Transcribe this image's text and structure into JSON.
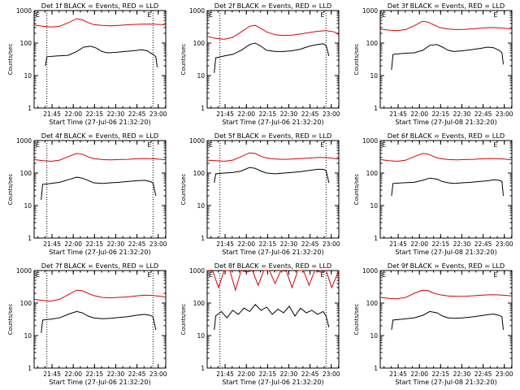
{
  "colors": {
    "events": "#000000",
    "lld": "#dd0000",
    "axis": "#000000",
    "background": "#ffffff"
  },
  "chart_data": [
    {
      "type": "line",
      "title": "Det 1f BLACK = Events, RED = LLD",
      "xlabel": "Start Time (27-Jul-06 21:32:20)",
      "ylabel": "Counts/sec",
      "x_ticks": [
        "21:45",
        "22:00",
        "22:15",
        "22:30",
        "22:45",
        "23:00"
      ],
      "y_ticks": [
        "1",
        "10",
        "100",
        "1000"
      ],
      "ylim": [
        1,
        1000
      ],
      "yscale": "log",
      "xlim_minutes": [
        0,
        93
      ],
      "marker_lines_minutes": [
        9,
        84
      ],
      "corner_labels": [
        "E",
        "E"
      ],
      "series": [
        {
          "kind": "events",
          "x": [
            8,
            9,
            16,
            24,
            30,
            35,
            40,
            44,
            48,
            52,
            58,
            64,
            70,
            76,
            80,
            82,
            84,
            86,
            87
          ],
          "y": [
            20,
            38,
            40,
            42,
            55,
            75,
            80,
            70,
            55,
            50,
            52,
            55,
            58,
            62,
            58,
            50,
            45,
            38,
            18
          ]
        },
        {
          "kind": "lld",
          "x": [
            0,
            6,
            12,
            18,
            24,
            30,
            34,
            38,
            42,
            48,
            54,
            60,
            66,
            72,
            78,
            84,
            90,
            93
          ],
          "y": [
            360,
            330,
            310,
            330,
            420,
            560,
            520,
            430,
            370,
            350,
            340,
            350,
            365,
            375,
            385,
            380,
            370,
            360
          ]
        }
      ]
    },
    {
      "type": "line",
      "title": "Det 2f BLACK = Events, RED = LLD",
      "xlabel": "Start Time (27-Jul-06 21:32:20)",
      "ylabel": "Counts/sec",
      "x_ticks": [
        "21:45",
        "22:00",
        "22:15",
        "22:30",
        "22:45",
        "23:00"
      ],
      "y_ticks": [
        "1",
        "10",
        "100",
        "1000"
      ],
      "ylim": [
        1,
        1000
      ],
      "yscale": "log",
      "xlim_minutes": [
        0,
        93
      ],
      "marker_lines_minutes": [
        9,
        84
      ],
      "corner_labels": [
        "E",
        "E"
      ],
      "series": [
        {
          "kind": "events",
          "x": [
            5,
            6,
            12,
            18,
            24,
            30,
            34,
            38,
            42,
            48,
            54,
            60,
            66,
            72,
            78,
            82,
            84,
            86
          ],
          "y": [
            12,
            35,
            40,
            45,
            60,
            90,
            100,
            80,
            60,
            55,
            55,
            58,
            65,
            80,
            90,
            95,
            85,
            40
          ]
        },
        {
          "kind": "lld",
          "x": [
            0,
            6,
            12,
            18,
            24,
            30,
            34,
            38,
            42,
            48,
            54,
            60,
            66,
            72,
            78,
            84,
            90,
            93
          ],
          "y": [
            160,
            140,
            130,
            150,
            220,
            330,
            350,
            280,
            220,
            180,
            170,
            175,
            190,
            210,
            230,
            240,
            220,
            180
          ]
        }
      ]
    },
    {
      "type": "line",
      "title": "Det 3f BLACK = Events, RED = LLD",
      "xlabel": "Start Time (27-Jul-08 21:32:20)",
      "ylabel": "Counts/sec",
      "x_ticks": [
        "21:45",
        "22:00",
        "22:15",
        "22:30",
        "22:45",
        "23:00"
      ],
      "y_ticks": [
        "1",
        "10",
        "100",
        "1000"
      ],
      "ylim": [
        1,
        1000
      ],
      "yscale": "log",
      "xlim_minutes": [
        0,
        93
      ],
      "marker_lines_minutes": [],
      "corner_labels": [
        "E",
        "E"
      ],
      "series": [
        {
          "kind": "events",
          "x": [
            8,
            9,
            16,
            24,
            30,
            35,
            40,
            44,
            48,
            52,
            58,
            64,
            70,
            76,
            80,
            84,
            86,
            87
          ],
          "y": [
            15,
            45,
            48,
            50,
            60,
            85,
            90,
            75,
            60,
            55,
            58,
            62,
            68,
            75,
            72,
            60,
            50,
            22
          ]
        },
        {
          "kind": "lld",
          "x": [
            0,
            6,
            12,
            18,
            24,
            30,
            34,
            38,
            42,
            48,
            54,
            60,
            66,
            72,
            78,
            84,
            90,
            93
          ],
          "y": [
            270,
            250,
            240,
            260,
            340,
            470,
            440,
            360,
            300,
            270,
            260,
            265,
            275,
            290,
            300,
            295,
            280,
            270
          ]
        }
      ]
    },
    {
      "type": "line",
      "title": "Det 4f BLACK = Events, RED = LLD",
      "xlabel": "Start Time (27-Jul-06 21:32:20)",
      "ylabel": "Counts/sec",
      "x_ticks": [
        "21:45",
        "22:00",
        "22:15",
        "22:30",
        "22:45",
        "23:00"
      ],
      "y_ticks": [
        "1",
        "10",
        "100",
        "1000"
      ],
      "ylim": [
        1,
        1000
      ],
      "yscale": "log",
      "xlim_minutes": [
        0,
        93
      ],
      "marker_lines_minutes": [
        9,
        84
      ],
      "corner_labels": [
        "E",
        "E"
      ],
      "series": [
        {
          "kind": "events",
          "x": [
            5,
            6,
            12,
            18,
            24,
            30,
            34,
            38,
            42,
            48,
            54,
            60,
            66,
            72,
            78,
            82,
            84,
            86
          ],
          "y": [
            15,
            45,
            48,
            52,
            62,
            75,
            70,
            60,
            50,
            48,
            50,
            52,
            55,
            58,
            60,
            55,
            50,
            20
          ]
        },
        {
          "kind": "lld",
          "x": [
            0,
            6,
            12,
            18,
            24,
            30,
            34,
            38,
            42,
            48,
            54,
            60,
            66,
            72,
            78,
            84,
            90,
            93
          ],
          "y": [
            260,
            240,
            230,
            250,
            320,
            400,
            380,
            320,
            280,
            260,
            255,
            260,
            265,
            275,
            280,
            275,
            265,
            255
          ]
        }
      ]
    },
    {
      "type": "line",
      "title": "Det 5f BLACK = Events, RED = LLD",
      "xlabel": "Start Time (27-Jul-06 21:32:20)",
      "ylabel": "Counts/sec",
      "x_ticks": [
        "21:45",
        "22:00",
        "22:15",
        "22:30",
        "22:45",
        "23:00"
      ],
      "y_ticks": [
        "1",
        "10",
        "100",
        "1000"
      ],
      "ylim": [
        1,
        1000
      ],
      "yscale": "log",
      "xlim_minutes": [
        0,
        93
      ],
      "marker_lines_minutes": [
        9,
        84
      ],
      "corner_labels": [
        "E",
        "E"
      ],
      "series": [
        {
          "kind": "events",
          "x": [
            5,
            6,
            12,
            18,
            24,
            30,
            34,
            38,
            42,
            48,
            54,
            60,
            66,
            72,
            78,
            82,
            84,
            86
          ],
          "y": [
            50,
            95,
            100,
            105,
            115,
            150,
            140,
            115,
            100,
            95,
            100,
            105,
            110,
            120,
            130,
            130,
            120,
            50
          ]
        },
        {
          "kind": "lld",
          "x": [
            0,
            6,
            12,
            18,
            24,
            30,
            34,
            38,
            42,
            48,
            54,
            60,
            66,
            72,
            78,
            84,
            90,
            93
          ],
          "y": [
            250,
            240,
            230,
            250,
            320,
            420,
            400,
            330,
            290,
            270,
            265,
            270,
            280,
            290,
            300,
            300,
            280,
            270
          ]
        }
      ]
    },
    {
      "type": "line",
      "title": "Det 6f BLACK = Events, RED = LLD",
      "xlabel": "Start Time (27-Jul-08 21:32:20)",
      "ylabel": "Counts/sec",
      "x_ticks": [
        "21:45",
        "22:00",
        "22:15",
        "22:30",
        "22:45",
        "23:00"
      ],
      "y_ticks": [
        "1",
        "10",
        "100",
        "1000"
      ],
      "ylim": [
        1,
        1000
      ],
      "yscale": "log",
      "xlim_minutes": [
        0,
        93
      ],
      "marker_lines_minutes": [],
      "corner_labels": [
        "E",
        "E"
      ],
      "series": [
        {
          "kind": "events",
          "x": [
            8,
            9,
            16,
            24,
            30,
            35,
            40,
            44,
            48,
            52,
            58,
            64,
            70,
            76,
            80,
            84,
            86,
            87
          ],
          "y": [
            20,
            48,
            50,
            52,
            60,
            70,
            65,
            55,
            50,
            48,
            50,
            52,
            55,
            58,
            62,
            60,
            55,
            20
          ]
        },
        {
          "kind": "lld",
          "x": [
            0,
            6,
            12,
            18,
            24,
            30,
            34,
            38,
            42,
            48,
            54,
            60,
            66,
            72,
            78,
            84,
            90,
            93
          ],
          "y": [
            260,
            240,
            230,
            250,
            320,
            400,
            380,
            320,
            280,
            260,
            255,
            260,
            265,
            275,
            280,
            275,
            265,
            255
          ]
        }
      ]
    },
    {
      "type": "line",
      "title": "Det 7f BLACK = Events, RED = LLD",
      "xlabel": "Start Time (27-Jul-06 21:32:20)",
      "ylabel": "Counts/sec",
      "x_ticks": [
        "21:45",
        "22:00",
        "22:15",
        "22:30",
        "22:45",
        "23:00"
      ],
      "y_ticks": [
        "1",
        "10",
        "100",
        "1000"
      ],
      "ylim": [
        1,
        1000
      ],
      "yscale": "log",
      "xlim_minutes": [
        0,
        93
      ],
      "marker_lines_minutes": [
        9,
        84
      ],
      "corner_labels": [
        "E",
        "E"
      ],
      "series": [
        {
          "kind": "events",
          "x": [
            5,
            6,
            12,
            18,
            24,
            30,
            34,
            38,
            42,
            48,
            54,
            60,
            66,
            72,
            78,
            82,
            84,
            86
          ],
          "y": [
            12,
            30,
            32,
            35,
            45,
            55,
            50,
            40,
            35,
            33,
            34,
            36,
            38,
            42,
            45,
            42,
            38,
            15
          ]
        },
        {
          "kind": "lld",
          "x": [
            0,
            6,
            12,
            18,
            24,
            30,
            34,
            38,
            42,
            48,
            54,
            60,
            66,
            72,
            78,
            84,
            90,
            93
          ],
          "y": [
            130,
            120,
            115,
            130,
            180,
            250,
            240,
            200,
            170,
            150,
            145,
            150,
            155,
            165,
            175,
            170,
            160,
            150
          ]
        }
      ]
    },
    {
      "type": "line",
      "title": "Det 8f BLACK = Events, RED = LLD",
      "xlabel": "Start Time (27-Jul-06 21:32:20)",
      "ylabel": "Counts/sec",
      "x_ticks": [
        "21:45",
        "22:00",
        "22:15",
        "22:30",
        "22:45",
        "23:00"
      ],
      "y_ticks": [
        "1",
        "10",
        "100",
        "1000"
      ],
      "ylim": [
        1,
        1000
      ],
      "yscale": "log",
      "xlim_minutes": [
        0,
        93
      ],
      "marker_lines_minutes": [
        9,
        84
      ],
      "corner_labels": [
        "E",
        "E"
      ],
      "series": [
        {
          "kind": "events",
          "x": [
            5,
            6,
            10,
            14,
            18,
            22,
            26,
            30,
            34,
            38,
            42,
            46,
            50,
            54,
            58,
            62,
            66,
            70,
            74,
            78,
            82,
            84,
            86
          ],
          "y": [
            15,
            40,
            55,
            35,
            60,
            45,
            70,
            55,
            90,
            60,
            75,
            45,
            65,
            50,
            80,
            40,
            70,
            50,
            60,
            45,
            55,
            40,
            18
          ]
        },
        {
          "kind": "lld",
          "x": [
            0,
            4,
            8,
            12,
            16,
            20,
            24,
            28,
            32,
            36,
            40,
            44,
            48,
            52,
            56,
            60,
            64,
            68,
            72,
            76,
            80,
            84,
            88,
            93
          ],
          "y": [
            1000,
            950,
            300,
            1000,
            1000,
            250,
            1000,
            900,
            1000,
            350,
            1000,
            1000,
            400,
            1000,
            950,
            300,
            1000,
            1000,
            350,
            1000,
            900,
            1000,
            300,
            1000
          ]
        }
      ]
    },
    {
      "type": "line",
      "title": "Det 9f BLACK = Events, RED = LLD",
      "xlabel": "Start Time (27-Jul-08 21:32:20)",
      "ylabel": "Counts/sec",
      "x_ticks": [
        "21:45",
        "22:00",
        "22:15",
        "22:30",
        "22:45",
        "23:00"
      ],
      "y_ticks": [
        "1",
        "10",
        "100",
        "1000"
      ],
      "ylim": [
        1,
        1000
      ],
      "yscale": "log",
      "xlim_minutes": [
        0,
        93
      ],
      "marker_lines_minutes": [],
      "corner_labels": [
        "E",
        "E"
      ],
      "series": [
        {
          "kind": "events",
          "x": [
            8,
            9,
            16,
            24,
            30,
            35,
            40,
            44,
            48,
            52,
            58,
            64,
            70,
            76,
            80,
            84,
            86,
            87
          ],
          "y": [
            15,
            30,
            32,
            35,
            42,
            55,
            50,
            40,
            35,
            34,
            35,
            37,
            40,
            44,
            46,
            42,
            38,
            15
          ]
        },
        {
          "kind": "lld",
          "x": [
            0,
            6,
            12,
            18,
            24,
            30,
            34,
            38,
            42,
            48,
            54,
            60,
            66,
            72,
            78,
            84,
            90,
            93
          ],
          "y": [
            150,
            140,
            135,
            150,
            200,
            250,
            240,
            200,
            180,
            165,
            160,
            162,
            168,
            175,
            180,
            178,
            170,
            165
          ]
        }
      ]
    }
  ]
}
